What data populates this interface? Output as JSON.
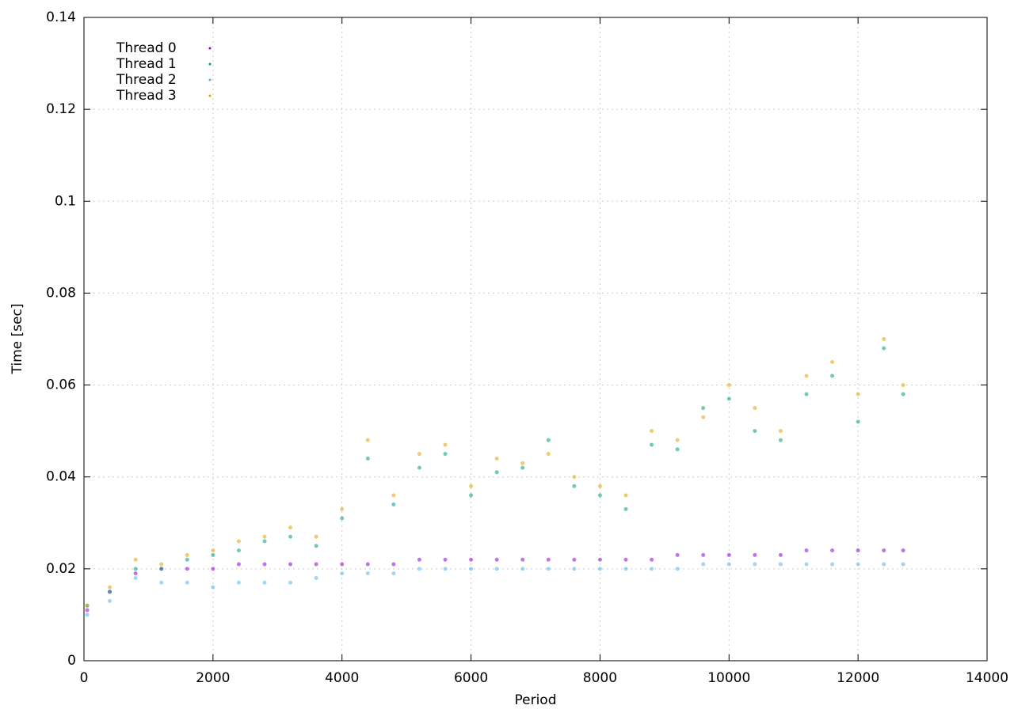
{
  "chart_data": {
    "type": "scatter",
    "xlabel": "Period",
    "ylabel": "Time [sec]",
    "x": [
      50,
      400,
      800,
      1200,
      1600,
      2000,
      2400,
      2800,
      3200,
      3600,
      4000,
      4400,
      4800,
      5200,
      5600,
      6000,
      6400,
      6800,
      7200,
      7600,
      8000,
      8400,
      8800,
      9200,
      9600,
      10000,
      10400,
      10800,
      11200,
      11600,
      12000,
      12400,
      12700
    ],
    "series": [
      {
        "name": "Thread 0",
        "color": "#9400d3",
        "values": [
          0.011,
          0.015,
          0.019,
          0.02,
          0.02,
          0.02,
          0.021,
          0.021,
          0.021,
          0.021,
          0.021,
          0.021,
          0.021,
          0.022,
          0.022,
          0.022,
          0.022,
          0.022,
          0.022,
          0.022,
          0.022,
          0.022,
          0.022,
          0.023,
          0.023,
          0.023,
          0.023,
          0.023,
          0.024,
          0.024,
          0.024,
          0.024,
          0.024
        ]
      },
      {
        "name": "Thread 1",
        "color": "#009e73",
        "values": [
          0.012,
          0.015,
          0.02,
          0.02,
          0.022,
          0.023,
          0.024,
          0.026,
          0.027,
          0.025,
          0.031,
          0.044,
          0.034,
          0.042,
          0.045,
          0.036,
          0.041,
          0.042,
          0.048,
          0.038,
          0.036,
          0.033,
          0.047,
          0.046,
          0.055,
          0.057,
          0.05,
          0.048,
          0.058,
          0.062,
          0.052,
          0.068,
          0.058
        ]
      },
      {
        "name": "Thread 2",
        "color": "#56b4e9",
        "values": [
          0.01,
          0.013,
          0.018,
          0.017,
          0.017,
          0.016,
          0.017,
          0.017,
          0.017,
          0.018,
          0.019,
          0.019,
          0.019,
          0.02,
          0.02,
          0.02,
          0.02,
          0.02,
          0.02,
          0.02,
          0.02,
          0.02,
          0.02,
          0.02,
          0.021,
          0.021,
          0.021,
          0.021,
          0.021,
          0.021,
          0.021,
          0.021,
          0.021
        ]
      },
      {
        "name": "Thread 3",
        "color": "#e69f00",
        "values": [
          0.012,
          0.016,
          0.022,
          0.021,
          0.023,
          0.024,
          0.026,
          0.027,
          0.029,
          0.027,
          0.033,
          0.048,
          0.036,
          0.045,
          0.047,
          0.038,
          0.044,
          0.043,
          0.045,
          0.04,
          0.038,
          0.036,
          0.05,
          0.048,
          0.053,
          0.06,
          0.055,
          0.05,
          0.062,
          0.065,
          0.058,
          0.07,
          0.06
        ]
      }
    ],
    "xlim": [
      0,
      14000
    ],
    "xticks": [
      0,
      2000,
      4000,
      6000,
      8000,
      10000,
      12000,
      14000
    ],
    "ylim": [
      0,
      0.14
    ],
    "yticks": [
      0,
      0.02,
      0.04,
      0.06,
      0.08,
      0.1,
      0.12,
      0.14
    ],
    "grid": true,
    "legend": "top-left"
  }
}
